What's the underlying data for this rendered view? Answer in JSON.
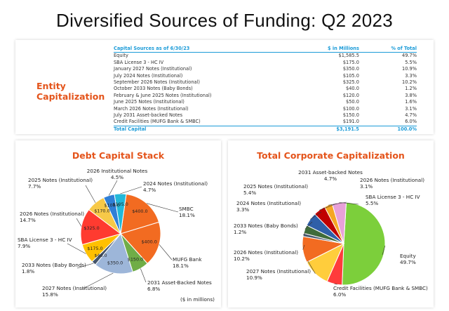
{
  "page": {
    "title": "Diversified Sources of Funding: Q2 2023",
    "entity_label_line1": "Entity",
    "entity_label_line2": "Capitalization",
    "units_note": "($ in millions)"
  },
  "colors": {
    "accent": "#e4541b",
    "table_header": "#1b9bd8"
  },
  "table": {
    "headers": [
      "Capital Sources as of 6/30/23",
      "$ in Millions",
      "% of Total"
    ],
    "rows": [
      [
        "Equity",
        "$1,585.5",
        "49.7%"
      ],
      [
        "SBA License 3 - HC IV",
        "$175.0",
        "5.5%"
      ],
      [
        "January 2027 Notes (Institutional)",
        "$350.0",
        "10.9%"
      ],
      [
        "July 2024 Notes (Institutional)",
        "$105.0",
        "3.3%"
      ],
      [
        "September 2026 Notes (Institutional)",
        "$325.0",
        "10.2%"
      ],
      [
        "October 2033 Notes (Baby Bonds)",
        "$40.0",
        "1.2%"
      ],
      [
        "February & June 2025 Notes (Institutional)",
        "$120.0",
        "3.8%"
      ],
      [
        "June 2025 Notes (Institutional)",
        "$50.0",
        "1.6%"
      ],
      [
        "March 2026 Notes (Institutional)",
        "$100.0",
        "3.1%"
      ],
      [
        "July 2031 Asset-backed Notes",
        "$150.0",
        "4.7%"
      ],
      [
        "Credit Facilities (MUFG Bank & SMBC)",
        "$191.0",
        "6.0%"
      ]
    ],
    "total": [
      "Total Capital",
      "$3,191.5",
      "100.0%"
    ]
  },
  "chart_data": [
    {
      "type": "pie",
      "title": "Debt Capital Stack",
      "slices": [
        {
          "name": "SMBC",
          "value": 400.0,
          "percent": "18.1%",
          "inner_label": "$400.0",
          "color": "#f26b21"
        },
        {
          "name": "MUFG Bank",
          "value": 400.0,
          "percent": "18.1%",
          "inner_label": "$400.0",
          "color": "#f26b21"
        },
        {
          "name": "2031 Asset-Backed Notes",
          "value": 150.0,
          "percent": "6.8%",
          "inner_label": "$150.0",
          "color": "#70ad47"
        },
        {
          "name": "2027 Notes (Institutional)",
          "value": 350.0,
          "percent": "15.8%",
          "inner_label": "$350.0",
          "color": "#9db6d9"
        },
        {
          "name": "2033 Notes (Baby Bonds)",
          "value": 40.0,
          "percent": "1.8%",
          "inner_label": "$40.0",
          "color": "#44546a"
        },
        {
          "name": "SBA License 3 - HC IV",
          "value": 175.0,
          "percent": "7.9%",
          "inner_label": "$175.0",
          "color": "#ffc000"
        },
        {
          "name": "2026 Notes (Institutional)",
          "value": 325.0,
          "percent": "14.7%",
          "inner_label": "$325.0",
          "color": "#ff3b30"
        },
        {
          "name": "2025 Notes (Institutional)",
          "value": 170.0,
          "percent": "7.7%",
          "inner_label": "$170.0",
          "color": "#f7c948"
        },
        {
          "name": "2026 Institutional Notes",
          "value": 100.0,
          "percent": "4.5%",
          "inner_label": "$100.0",
          "color": "#2f7fd6"
        },
        {
          "name": "2024 Notes (Institutional)",
          "value": 105.0,
          "percent": "4.7%",
          "inner_label": "$105.0",
          "color": "#22b8d8"
        }
      ]
    },
    {
      "type": "pie",
      "title": "Total Corporate Capitalization",
      "slices": [
        {
          "name": "Equity",
          "value": 1585.5,
          "percent": "49.7%",
          "color": "#7ccf3b"
        },
        {
          "name": "Credit Facilities (MUFG Bank & SMBC)",
          "value": 191.0,
          "percent": "6.0%",
          "color": "#ff3b3b"
        },
        {
          "name": "2027 Notes (Institutional)",
          "value": 350.0,
          "percent": "10.9%",
          "color": "#ffcd3c"
        },
        {
          "name": "2026 Notes (Institutional)",
          "value": 325.0,
          "percent": "10.2%",
          "color": "#f26b21"
        },
        {
          "name": "2033 Notes (Baby Bonds)",
          "value": 40.0,
          "percent": "1.2%",
          "color": "#4a5a6e"
        },
        {
          "name": "2024 Notes (Institutional)",
          "value": 105.0,
          "percent": "3.3%",
          "color": "#3f6b3a"
        },
        {
          "name": "2025 Notes (Institutional)",
          "value": 170.0,
          "percent": "5.4%",
          "color": "#2f5fa8"
        },
        {
          "name": "2031 Asset-backed Notes",
          "value": 150.0,
          "percent": "4.7%",
          "color": "#c00000"
        },
        {
          "name": "2026 Notes (Institutional)",
          "value": 100.0,
          "percent": "3.1%",
          "color": "#f5a623"
        },
        {
          "name": "SBA License 3 - HC IV",
          "value": 175.0,
          "percent": "5.5%",
          "color": "#e8a1d8"
        }
      ]
    }
  ]
}
